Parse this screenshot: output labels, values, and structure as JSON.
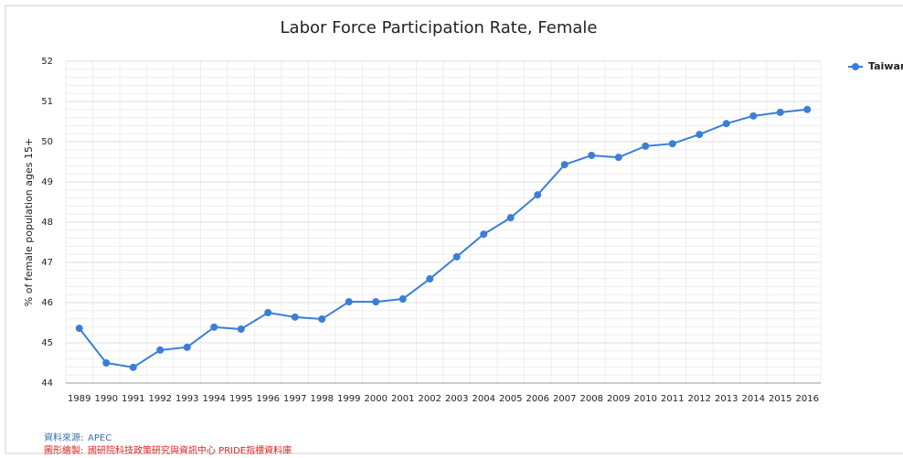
{
  "chart_data": {
    "type": "line",
    "title": "Labor Force Participation Rate, Female",
    "y_label": "% of female population ages 15+",
    "categories": [
      "1989",
      "1990",
      "1991",
      "1992",
      "1993",
      "1994",
      "1995",
      "1996",
      "1997",
      "1998",
      "1999",
      "2000",
      "2001",
      "2002",
      "2003",
      "2004",
      "2005",
      "2006",
      "2007",
      "2008",
      "2009",
      "2010",
      "2011",
      "2012",
      "2013",
      "2014",
      "2015",
      "2016"
    ],
    "series": [
      {
        "name": "Taiwan",
        "color": "#3a7fd5",
        "values": [
          45.36,
          44.5,
          44.39,
          44.82,
          44.89,
          45.39,
          45.34,
          45.75,
          45.64,
          45.59,
          46.02,
          46.02,
          46.09,
          46.59,
          47.14,
          47.7,
          48.11,
          48.68,
          49.43,
          49.66,
          49.61,
          49.89,
          49.95,
          50.18,
          50.45,
          50.64,
          50.73,
          50.8
        ]
      }
    ],
    "ylim": [
      44,
      52
    ],
    "yticks": [
      44,
      45,
      46,
      47,
      48,
      49,
      50,
      51,
      52
    ],
    "minor_divisions": 5,
    "grid": true,
    "legend": "top-right"
  },
  "footer": {
    "source_label": "資料來源:",
    "source": "APEC",
    "credit_label": "圖形繪製:",
    "credit": "國研院科技政策研究與資訊中心 PRIDE指標資料庫"
  }
}
